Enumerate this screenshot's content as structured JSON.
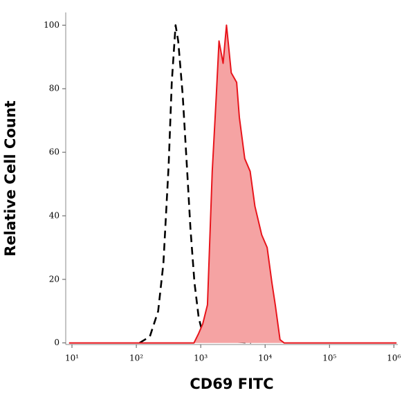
{
  "chart_data": {
    "type": "line",
    "xlabel": "CD69 FITC",
    "ylabel": "Relative Cell Count",
    "xscale": "log",
    "xlim": [
      8,
      1150000
    ],
    "ylim": [
      -0.5,
      104
    ],
    "xticks": [
      {
        "value": 10,
        "label": "10¹"
      },
      {
        "value": 100,
        "label": "10²"
      },
      {
        "value": 1000,
        "label": "10³"
      },
      {
        "value": 10000,
        "label": "10⁴"
      },
      {
        "value": 100000,
        "label": "10⁵"
      },
      {
        "value": 1000000,
        "label": "10⁶"
      }
    ],
    "yticks": [
      0,
      20,
      40,
      60,
      80,
      100
    ],
    "series": [
      {
        "color": "#000000",
        "dashed": true,
        "x": [
          112,
          162,
          218,
          263,
          318,
          355,
          407,
          447,
          525,
          617,
          692,
          800,
          930,
          1070,
          1500,
          3000,
          6000
        ],
        "values": [
          0,
          2,
          10,
          25,
          56,
          82,
          100,
          95,
          78,
          54,
          36,
          19,
          8,
          3,
          1,
          0.5,
          0
        ]
      },
      {
        "color": "#e8141b",
        "fill": "#f5a3a3",
        "x": [
          9,
          785,
          929,
          1076,
          1274,
          1510,
          1746,
          1923,
          2224,
          2512,
          2978,
          3614,
          3981,
          4830,
          5860,
          6950,
          8850,
          10760,
          12740,
          14390,
          17060,
          19720,
          1100000
        ],
        "values": [
          0,
          0,
          3,
          6,
          12,
          54,
          78,
          95,
          88,
          100,
          85,
          82,
          71,
          58,
          54,
          43,
          34,
          30,
          19,
          12,
          1,
          0,
          0
        ]
      }
    ]
  }
}
